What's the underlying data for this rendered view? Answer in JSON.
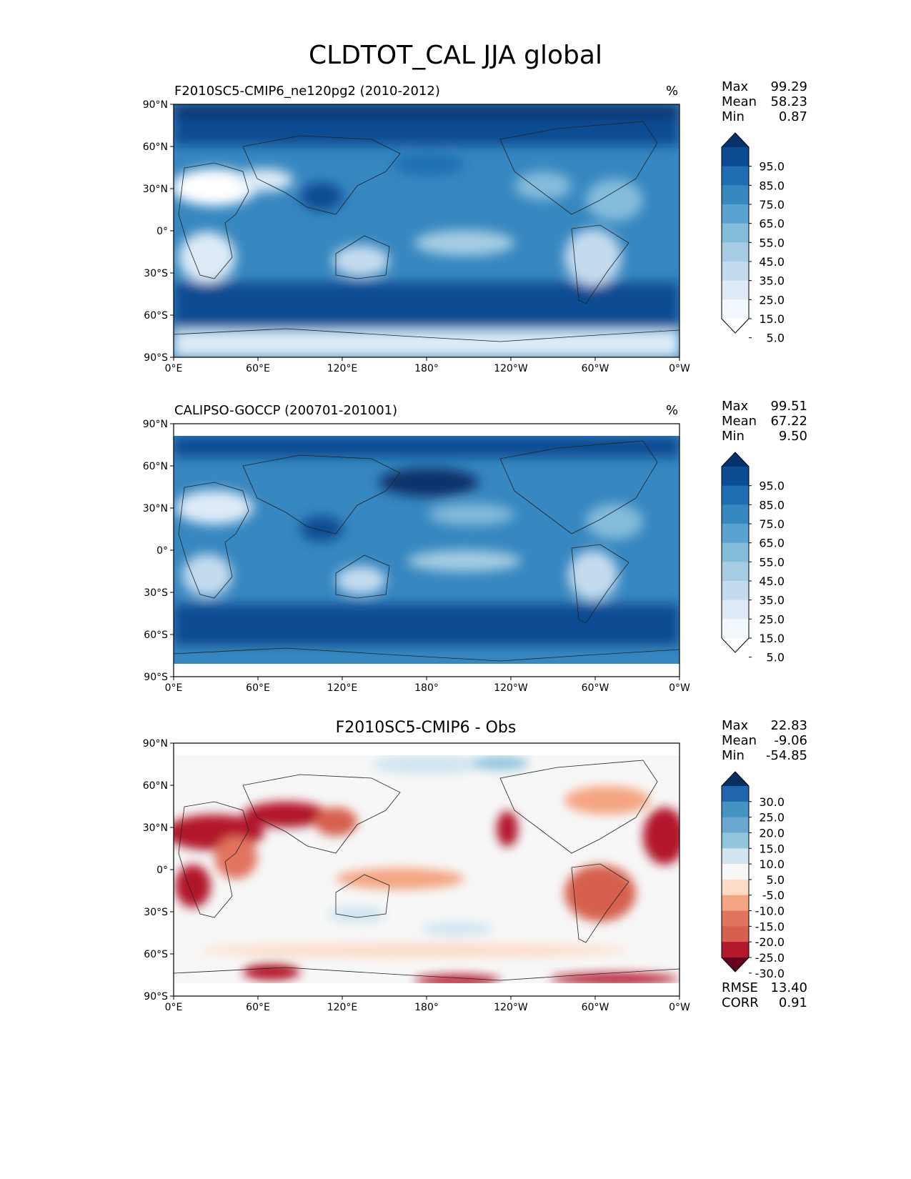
{
  "title": "CLDTOT_CAL JJA global",
  "chart_data": [
    {
      "type": "heatmap",
      "title": "F2010SC5-CMIP6_ne120pg2 (2010-2012)",
      "units": "%",
      "x_ticks": [
        "0°E",
        "60°E",
        "120°E",
        "180°",
        "120°W",
        "60°W",
        "0°W"
      ],
      "y_ticks": [
        "90°N",
        "60°N",
        "30°N",
        "0°",
        "30°S",
        "60°S",
        "90°S"
      ],
      "xlim": [
        0,
        360
      ],
      "ylim": [
        -90,
        90
      ],
      "stats": [
        {
          "label": "Max",
          "value": "99.29"
        },
        {
          "label": "Mean",
          "value": "58.23"
        },
        {
          "label": "Min",
          "value": "0.87"
        }
      ],
      "colorbar": {
        "labels": [
          "95.0",
          "85.0",
          "75.0",
          "65.0",
          "55.0",
          "45.0",
          "35.0",
          "25.0",
          "15.0",
          "5.0"
        ],
        "colors": [
          "#08306b",
          "#0b4c93",
          "#1f6eb3",
          "#3787c0",
          "#5aa2cf",
          "#84bcdb",
          "#a6cde3",
          "#c4dbee",
          "#deebf7",
          "#f2f8fd",
          "#ffffff"
        ]
      }
    },
    {
      "type": "heatmap",
      "title": "CALIPSO-GOCCP (200701-201001)",
      "units": "%",
      "x_ticks": [
        "0°E",
        "60°E",
        "120°E",
        "180°",
        "120°W",
        "60°W",
        "0°W"
      ],
      "y_ticks": [
        "90°N",
        "60°N",
        "30°N",
        "0°",
        "30°S",
        "60°S",
        "90°S"
      ],
      "xlim": [
        0,
        360
      ],
      "ylim": [
        -90,
        90
      ],
      "stats": [
        {
          "label": "Max",
          "value": "99.51"
        },
        {
          "label": "Mean",
          "value": "67.22"
        },
        {
          "label": "Min",
          "value": "9.50"
        }
      ],
      "colorbar": {
        "labels": [
          "95.0",
          "85.0",
          "75.0",
          "65.0",
          "55.0",
          "45.0",
          "35.0",
          "25.0",
          "15.0",
          "5.0"
        ],
        "colors": [
          "#08306b",
          "#0b4c93",
          "#1f6eb3",
          "#3787c0",
          "#5aa2cf",
          "#84bcdb",
          "#a6cde3",
          "#c4dbee",
          "#deebf7",
          "#f2f8fd",
          "#ffffff"
        ]
      }
    },
    {
      "type": "heatmap",
      "title": "F2010SC5-CMIP6 - Obs",
      "x_ticks": [
        "0°E",
        "60°E",
        "120°E",
        "180°",
        "120°W",
        "60°W",
        "0°W"
      ],
      "y_ticks": [
        "90°N",
        "60°N",
        "30°N",
        "0°",
        "30°S",
        "60°S",
        "90°S"
      ],
      "xlim": [
        0,
        360
      ],
      "ylim": [
        -90,
        90
      ],
      "stats": [
        {
          "label": "Max",
          "value": "22.83"
        },
        {
          "label": "Mean",
          "value": "-9.06"
        },
        {
          "label": "Min",
          "value": "-54.85"
        }
      ],
      "metrics": [
        {
          "label": "RMSE",
          "value": "13.40"
        },
        {
          "label": "CORR",
          "value": "0.91"
        }
      ],
      "colorbar": {
        "labels": [
          "30.0",
          "25.0",
          "20.0",
          "15.0",
          "10.0",
          "5.0",
          "-5.0",
          "-10.0",
          "-15.0",
          "-20.0",
          "-25.0",
          "-30.0"
        ],
        "colors": [
          "#053061",
          "#2166ac",
          "#4393c3",
          "#6aa8d1",
          "#92c5de",
          "#d1e5f0",
          "#f7f7f7",
          "#fddbc7",
          "#f4a582",
          "#e2735e",
          "#d6604d",
          "#b2182b",
          "#67001f"
        ]
      }
    }
  ]
}
